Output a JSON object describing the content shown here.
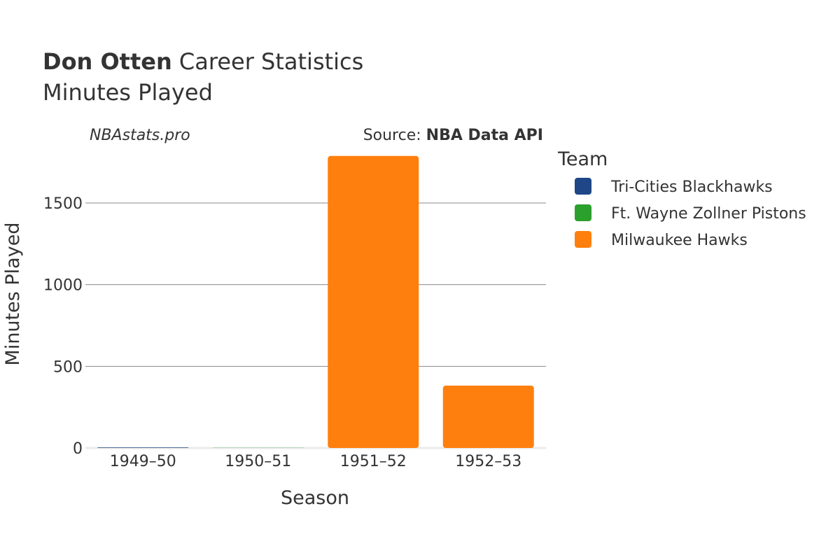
{
  "title": {
    "player": "Don Otten",
    "rest": "Career Statistics"
  },
  "subtitle": "Minutes Played",
  "watermark": "NBAstats.pro",
  "source": {
    "prefix": "Source: ",
    "name": "NBA Data API"
  },
  "legend": {
    "title": "Team",
    "items": [
      {
        "label": "Tri-Cities Blackhawks",
        "color": "#1f4788"
      },
      {
        "label": "Ft. Wayne Zollner Pistons",
        "color": "#2ca02c"
      },
      {
        "label": "Milwaukee Hawks",
        "color": "#ff7f0e"
      }
    ]
  },
  "chart_data": {
    "type": "bar",
    "categories": [
      "1949–50",
      "1950–51",
      "1951–52",
      "1952–53"
    ],
    "series": [
      {
        "name": "Tri-Cities Blackhawks",
        "color": "#1f4788",
        "values": [
          3,
          0,
          0,
          0
        ]
      },
      {
        "name": "Ft. Wayne Zollner Pistons",
        "color": "#2ca02c",
        "values": [
          0,
          1,
          0,
          0
        ]
      },
      {
        "name": "Milwaukee Hawks",
        "color": "#ff7f0e",
        "values": [
          0,
          0,
          1788,
          382
        ]
      }
    ],
    "xlabel": "Season",
    "ylabel": "Minutes Played",
    "ylim": [
      0,
      1800
    ],
    "yticks": [
      0,
      500,
      1000,
      1500
    ],
    "grid": true,
    "legend_position": "right"
  }
}
